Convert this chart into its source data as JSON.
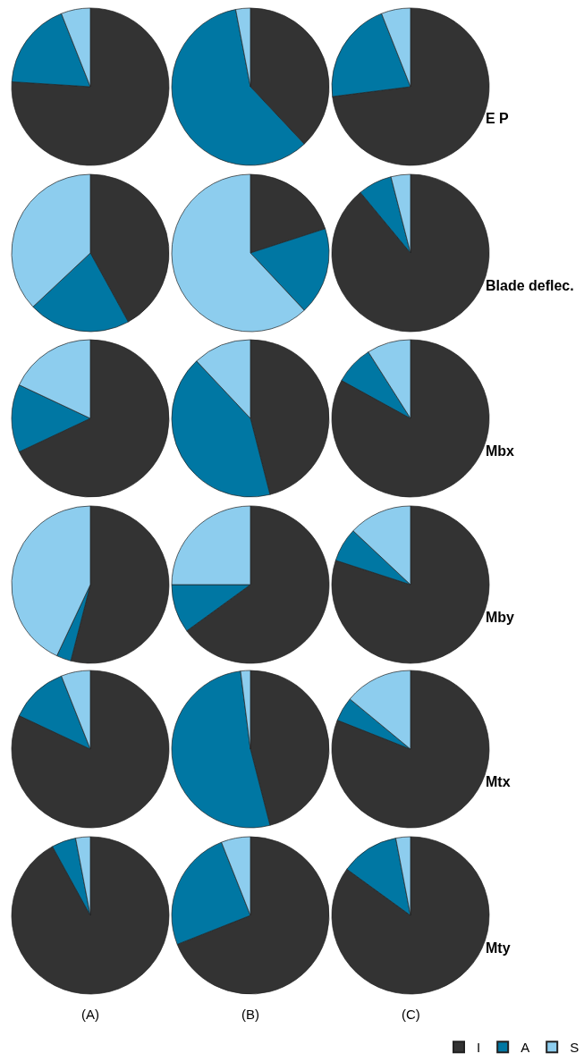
{
  "chart_data": [
    {
      "type": "pie",
      "categories": [
        "I",
        "A",
        "S"
      ],
      "values": [
        76,
        18,
        6
      ],
      "colors": [
        "#333333",
        "#0077a3",
        "#8dcdee"
      ],
      "legend": "bottom right"
    },
    {
      "type": "pie",
      "categories": [
        null,
        null,
        null
      ],
      "values": [
        38,
        59,
        3
      ],
      "colors": [
        "#333333",
        "#0077a3",
        "#8dcdee"
      ]
    },
    {
      "type": "pie",
      "categories": [
        null,
        null,
        null
      ],
      "values": [
        73,
        21,
        6
      ],
      "colors": [
        "#333333",
        "#0077a3",
        "#8dcdee"
      ],
      "annotations": [
        "E P"
      ]
    },
    {
      "type": "pie",
      "categories": [
        null,
        null,
        null
      ],
      "values": [
        42,
        21,
        37
      ],
      "colors": [
        "#333333",
        "#0077a3",
        "#8dcdee"
      ]
    },
    {
      "type": "pie",
      "categories": [
        null,
        null,
        null
      ],
      "values": [
        20,
        18,
        62
      ],
      "colors": [
        "#333333",
        "#0077a3",
        "#8dcdee"
      ]
    },
    {
      "type": "pie",
      "categories": [
        null,
        null,
        null
      ],
      "values": [
        89,
        7,
        4
      ],
      "colors": [
        "#333333",
        "#0077a3",
        "#8dcdee"
      ],
      "annotations": [
        "Blade deflec."
      ]
    },
    {
      "type": "pie",
      "categories": [
        null,
        null,
        null
      ],
      "values": [
        68,
        14,
        18
      ],
      "colors": [
        "#333333",
        "#0077a3",
        "#8dcdee"
      ]
    },
    {
      "type": "pie",
      "categories": [
        null,
        null,
        null
      ],
      "values": [
        46,
        42,
        12
      ],
      "colors": [
        "#333333",
        "#0077a3",
        "#8dcdee"
      ]
    },
    {
      "type": "pie",
      "categories": [
        null,
        null,
        null
      ],
      "values": [
        83,
        8,
        9
      ],
      "colors": [
        "#333333",
        "#0077a3",
        "#8dcdee"
      ],
      "annotations": [
        "Mbx"
      ]
    },
    {
      "type": "pie",
      "categories": [
        null,
        null,
        null
      ],
      "values": [
        54,
        3,
        43
      ],
      "colors": [
        "#333333",
        "#0077a3",
        "#8dcdee"
      ]
    },
    {
      "type": "pie",
      "categories": [
        null,
        null,
        null
      ],
      "values": [
        65,
        10,
        25
      ],
      "colors": [
        "#333333",
        "#0077a3",
        "#8dcdee"
      ]
    },
    {
      "type": "pie",
      "categories": [
        null,
        null,
        null
      ],
      "values": [
        80,
        7,
        13
      ],
      "colors": [
        "#333333",
        "#0077a3",
        "#8dcdee"
      ],
      "annotations": [
        "Mby"
      ]
    },
    {
      "type": "pie",
      "categories": [
        null,
        null,
        null
      ],
      "values": [
        82,
        12,
        6
      ],
      "colors": [
        "#333333",
        "#0077a3",
        "#8dcdee"
      ]
    },
    {
      "type": "pie",
      "categories": [
        null,
        null,
        null
      ],
      "values": [
        46,
        52,
        2
      ],
      "colors": [
        "#333333",
        "#0077a3",
        "#8dcdee"
      ]
    },
    {
      "type": "pie",
      "categories": [
        null,
        null,
        null
      ],
      "values": [
        81,
        5,
        14
      ],
      "colors": [
        "#333333",
        "#0077a3",
        "#8dcdee"
      ],
      "annotations": [
        "Mtx"
      ]
    },
    {
      "type": "pie",
      "categories": [
        null,
        null,
        null
      ],
      "values": [
        92,
        5,
        3
      ],
      "colors": [
        "#333333",
        "#0077a3",
        "#8dcdee"
      ],
      "xlabel": "(A)"
    },
    {
      "type": "pie",
      "categories": [
        null,
        null,
        null
      ],
      "values": [
        69,
        25,
        6
      ],
      "colors": [
        "#333333",
        "#0077a3",
        "#8dcdee"
      ],
      "xlabel": "(B)"
    },
    {
      "type": "pie",
      "categories": [
        null,
        null,
        null
      ],
      "values": [
        85,
        12,
        3
      ],
      "colors": [
        "#333333",
        "#0077a3",
        "#8dcdee"
      ],
      "xlabel": "(C)",
      "annotations": [
        "Mty"
      ]
    }
  ]
}
